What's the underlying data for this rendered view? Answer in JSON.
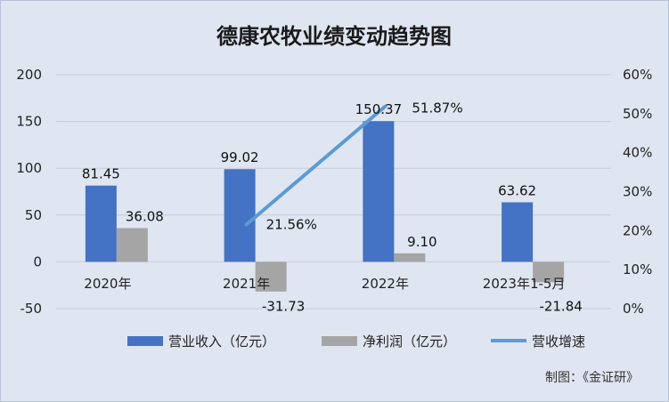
{
  "chart_data": {
    "type": "bar",
    "title": "德康农牧业绩变动趋势图",
    "categories": [
      "2020年",
      "2021年",
      "2022年",
      "2023年1-5月"
    ],
    "series": [
      {
        "name": "营业收入（亿元）",
        "type": "bar",
        "axis": "left",
        "color": "#4472c4",
        "values": [
          81.45,
          99.02,
          150.37,
          63.62
        ],
        "labels": [
          "81.45",
          "99.02",
          "150.37",
          "63.62"
        ]
      },
      {
        "name": "净利润（亿元）",
        "type": "bar",
        "axis": "left",
        "color": "#a5a5a5",
        "values": [
          36.08,
          -31.73,
          9.1,
          -21.84
        ],
        "labels": [
          "36.08",
          "-31.73",
          "9.10",
          "-21.84"
        ]
      },
      {
        "name": "营收增速",
        "type": "line",
        "axis": "right",
        "color": "#5b9bd5",
        "values": [
          null,
          21.56,
          51.87,
          null
        ],
        "labels": [
          "",
          "21.56%",
          "51.87%",
          ""
        ]
      }
    ],
    "y_left": {
      "min": -50,
      "max": 200,
      "step": 50,
      "ticks": [
        "-50",
        "0",
        "50",
        "100",
        "150",
        "200"
      ]
    },
    "y_right": {
      "min": 0,
      "max": 60,
      "step": 10,
      "ticks": [
        "0%",
        "10%",
        "20%",
        "30%",
        "40%",
        "50%",
        "60%"
      ]
    },
    "grid": true,
    "legend": "bottom"
  },
  "credit": "制图：《金证研》"
}
